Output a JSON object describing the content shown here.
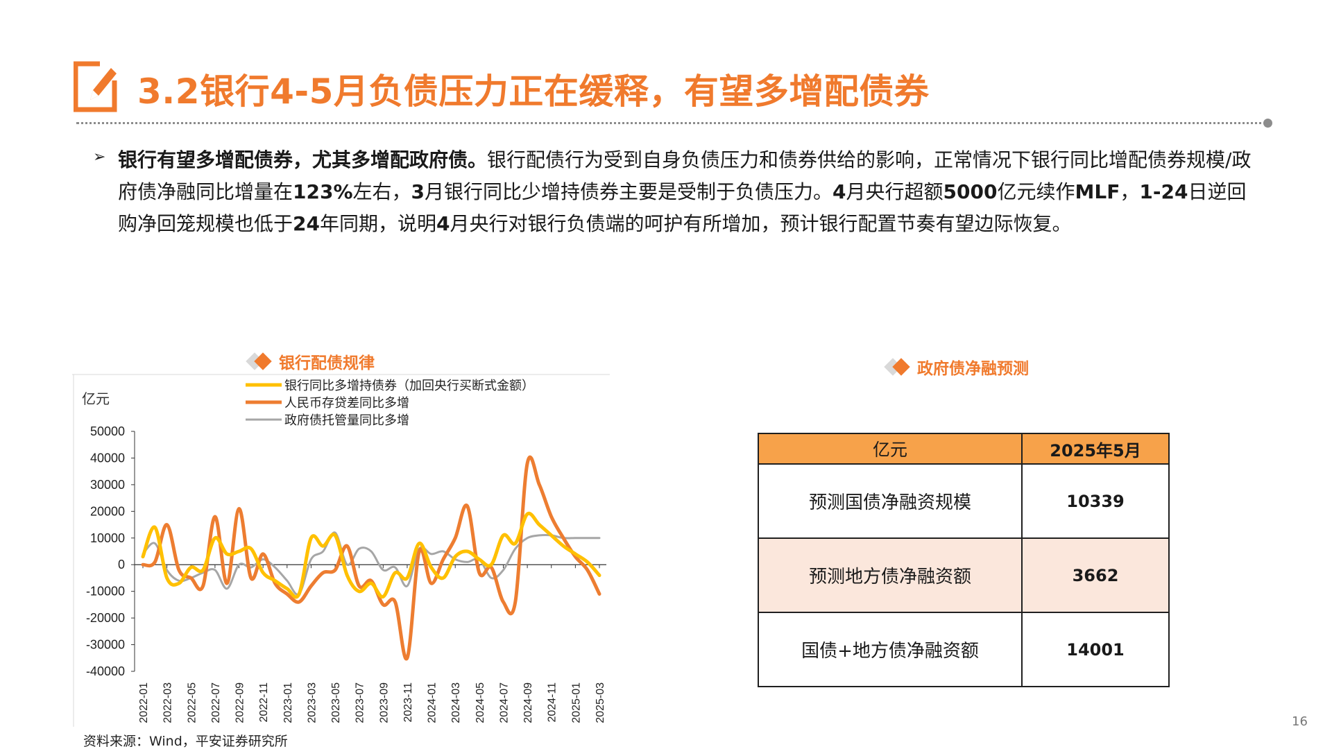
{
  "header": {
    "title": "3.2银行4-5月负债压力正在缓释，有望多增配债券",
    "icon": "pencil-note-icon",
    "accent_color": "#f07a2d"
  },
  "bullet": {
    "bold_text": "银行有望多增配债券，尤其多增配政府债。",
    "text_1": "银行配债行为受到自身负债压力和债券供给的影响，正常情况下银行同比增配债券规模/政府债净融同比增量在",
    "value_1": "123%",
    "text_2": "左右，",
    "value_2": "3",
    "text_3": "月银行同比少增持债券主要是受制于负债压力。",
    "value_3": "4",
    "text_4": "月央行超额",
    "value_4": "5000",
    "text_5": "亿元续作",
    "value_5": "MLF",
    "text_6": "，",
    "value_6": "1-24",
    "text_7": "日逆回购净回笼规模也低于",
    "value_7": "24",
    "text_8": "年同期，说明",
    "value_8": "4",
    "text_9": "月央行对银行负债端的呵护有所增加，预计银行配置节奏有望边际恢复。"
  },
  "left_chart_heading": "银行配债规律",
  "right_chart_heading": "政府债净融预测",
  "source": "资料来源：Wind，平安证券研究所",
  "page_number": "16",
  "chart_data": [
    {
      "type": "line",
      "title": "银行配债规律",
      "ylabel": "亿元",
      "ylim": [
        -40000,
        50000
      ],
      "yticks": [
        "50000",
        "40000",
        "30000",
        "20000",
        "10000",
        "0",
        "-10000",
        "-20000",
        "-30000",
        "-40000"
      ],
      "x": [
        "2022-01",
        "2022-02",
        "2022-03",
        "2022-04",
        "2022-05",
        "2022-06",
        "2022-07",
        "2022-08",
        "2022-09",
        "2022-10",
        "2022-11",
        "2022-12",
        "2023-01",
        "2023-02",
        "2023-03",
        "2023-04",
        "2023-05",
        "2023-06",
        "2023-07",
        "2023-08",
        "2023-09",
        "2023-10",
        "2023-11",
        "2023-12",
        "2024-01",
        "2024-02",
        "2024-03",
        "2024-04",
        "2024-05",
        "2024-06",
        "2024-07",
        "2024-08",
        "2024-09",
        "2024-10",
        "2024-11",
        "2024-12",
        "2025-01",
        "2025-02",
        "2025-03"
      ],
      "xtick_labels": [
        "2022-01",
        "2022-03",
        "2022-05",
        "2022-07",
        "2022-09",
        "2022-11",
        "2023-01",
        "2023-03",
        "2023-05",
        "2023-07",
        "2023-09",
        "2023-11",
        "2024-01",
        "2024-03",
        "2024-05",
        "2024-07",
        "2024-09",
        "2024-11",
        "2025-01",
        "2025-03"
      ],
      "legend_position": "top-left",
      "series": [
        {
          "name": "银行同比多增持债券（加回央行买断式金额）",
          "color": "#ffc000",
          "values": [
            3000,
            14000,
            -5000,
            -7000,
            -1000,
            -2000,
            10000,
            4000,
            5000,
            6000,
            -3000,
            -6000,
            -9000,
            -11000,
            10000,
            7000,
            11000,
            -4000,
            -10000,
            -7000,
            -12000,
            -3000,
            -5000,
            8000,
            -1000,
            -5000,
            3000,
            5000,
            2000,
            0,
            11000,
            8000,
            19000,
            15000,
            11000,
            7000,
            4000,
            1000,
            -4000
          ]
        },
        {
          "name": "人民币存贷差同比多增",
          "color": "#ed7d31",
          "values": [
            0,
            1000,
            15000,
            -2000,
            -5000,
            -8000,
            18000,
            -7000,
            21000,
            -5000,
            4000,
            -7000,
            -11000,
            -14000,
            -8000,
            -3000,
            -2000,
            7000,
            -8000,
            -6000,
            -15000,
            -14000,
            -35000,
            5000,
            -7000,
            2000,
            10000,
            22000,
            -3000,
            -1000,
            -14000,
            -14000,
            38000,
            30000,
            18000,
            10000,
            3000,
            -2000,
            -11000
          ]
        },
        {
          "name": "政府债托管量同比多增",
          "color": "#a6a6a6",
          "values": [
            4000,
            8000,
            -2000,
            -6000,
            -5000,
            -3000,
            -2000,
            -9000,
            0,
            -1000,
            2000,
            -1000,
            -6000,
            -11000,
            2000,
            5000,
            12000,
            0,
            6000,
            5000,
            -2000,
            -1000,
            -8000,
            6000,
            4000,
            5000,
            2000,
            1000,
            2000,
            -5000,
            -2000,
            6000,
            10000,
            11000,
            11000,
            10000,
            10000,
            10000,
            10000
          ]
        }
      ]
    },
    {
      "type": "table",
      "title": "政府债净融预测",
      "columns": [
        "亿元",
        "2025年5月"
      ],
      "rows": [
        [
          "预测国债净融资规模",
          "10339"
        ],
        [
          "预测地方债净融资额",
          "3662"
        ],
        [
          "国债+地方债净融资额",
          "14001"
        ]
      ]
    }
  ]
}
